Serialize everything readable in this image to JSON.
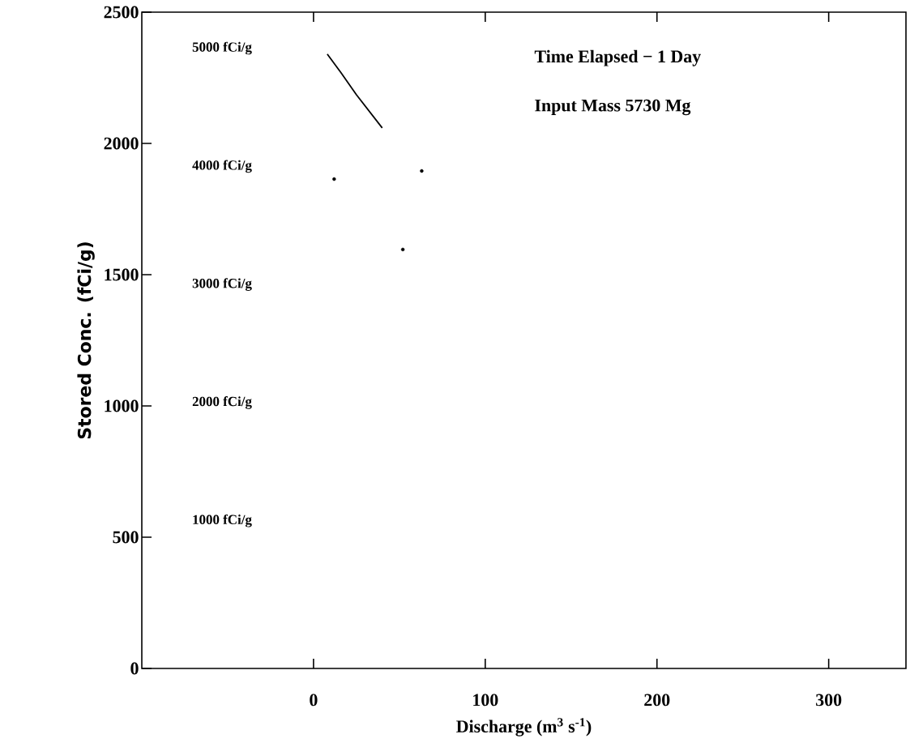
{
  "chart_data": {
    "type": "line",
    "xlabel": "Discharge (m$^{3}$ s$^{-1}$)",
    "ylabel": "Stored Conc. (fCi/g)",
    "xlim": [
      -100,
      345
    ],
    "ylim": [
      0,
      2500
    ],
    "xticks": [
      0,
      100,
      200,
      300
    ],
    "yticks": [
      0,
      500,
      1000,
      1500,
      2000,
      2500
    ],
    "grid": false,
    "marker": "none",
    "line_style": "solid",
    "series": [
      {
        "color": "#000000",
        "x": [
          8,
          16,
          25,
          40
        ],
        "values": [
          2340,
          2269,
          2185,
          2059
        ]
      },
      {
        "type": "scatter",
        "color": "#000000",
        "x": [
          12,
          63,
          52
        ],
        "values": [
          1864,
          1895,
          1596
        ]
      }
    ],
    "annotations": [
      "5000 fCi/g",
      "4000 fCi/g",
      "3000 fCi/g",
      "2000 fCi/g",
      "1000 fCi/g",
      "Time Elapsed − 1 Day",
      "Input Mass 5730 Mg"
    ]
  }
}
